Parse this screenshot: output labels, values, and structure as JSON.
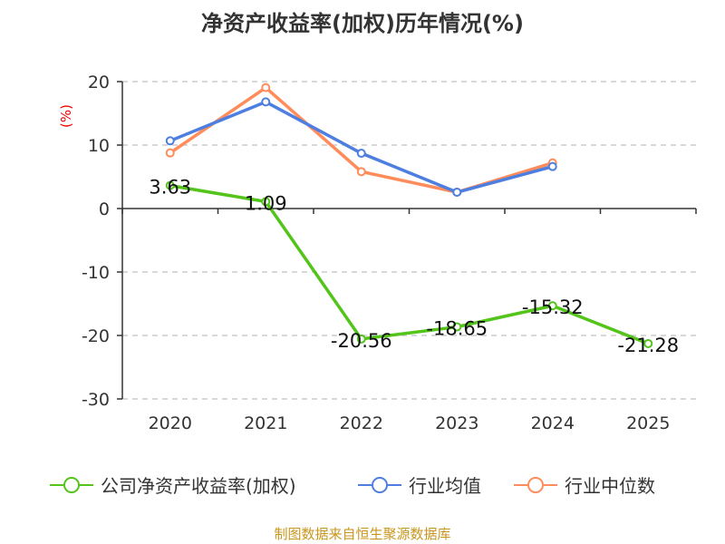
{
  "chart_data": {
    "type": "line",
    "title": "净资产收益率(加权)历年情况(%)",
    "ylabel": "(%)",
    "categories": [
      "2020",
      "2021",
      "2022",
      "2023",
      "2024",
      "2025"
    ],
    "ylim": [
      -30,
      20
    ],
    "yticks": [
      20,
      10,
      0,
      -10,
      -20,
      -30
    ],
    "grid": true,
    "legend_position": "bottom",
    "series": [
      {
        "name": "公司净资产收益率(加权)",
        "color": "#52c41a",
        "values": [
          3.63,
          1.09,
          -20.56,
          -18.65,
          -15.32,
          -21.28
        ],
        "labels": [
          "3.63",
          "1.09",
          "-20.56",
          "-18.65",
          "-15.32",
          "-21.28"
        ]
      },
      {
        "name": "行业均值",
        "color": "#4e7fe0",
        "values": [
          10.67,
          16.8,
          8.71,
          2.57,
          6.62,
          null
        ]
      },
      {
        "name": "行业中位数",
        "color": "#ff8c5a",
        "values": [
          8.76,
          19.05,
          5.81,
          2.57,
          7.19,
          null
        ]
      }
    ]
  },
  "source": "制图数据来自恒生聚源数据库"
}
